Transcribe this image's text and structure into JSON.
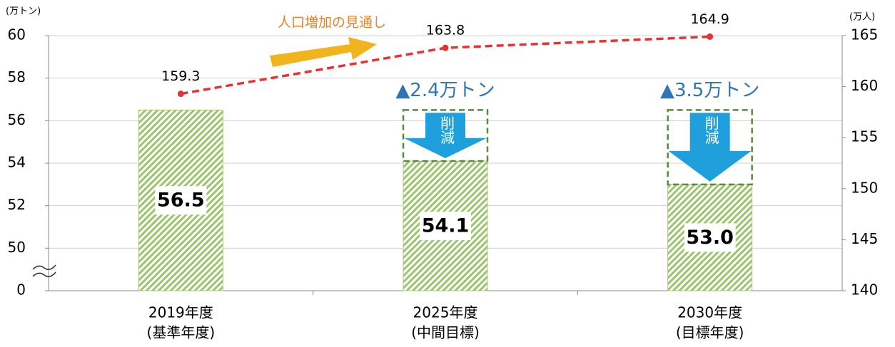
{
  "chart_data": {
    "type": "combo",
    "y_axis_label": "(万トン)",
    "y2_axis_label": "(万人)",
    "annotation": "人口増加の見通し",
    "categories": [
      [
        "2019年度",
        "(基準年度)"
      ],
      [
        "2025年度",
        "(中間目標)"
      ],
      [
        "2030年度",
        "(目標年度)"
      ]
    ],
    "series": [
      {
        "type": "bar",
        "color": "#8cb85c",
        "values": [
          56.5,
          54.1,
          53.0
        ],
        "value_labels": [
          "56.5",
          "54.1",
          "53.0"
        ]
      },
      {
        "type": "line",
        "axis": "y2",
        "color": "#e63232",
        "values": [
          159.3,
          163.8,
          164.9
        ]
      }
    ],
    "reduction_labels": [
      null,
      "▲2.4万トン",
      "▲3.5万トン"
    ],
    "reduction_arrow_label": "削減",
    "ylim": [
      48,
      60
    ],
    "yticks": [
      {
        "value": 48,
        "label": "0"
      },
      50,
      52,
      54,
      56,
      58,
      60
    ],
    "y2lim": [
      140,
      165
    ],
    "y2ticks": [
      140,
      145,
      150,
      155,
      160,
      165
    ],
    "grid": true
  }
}
